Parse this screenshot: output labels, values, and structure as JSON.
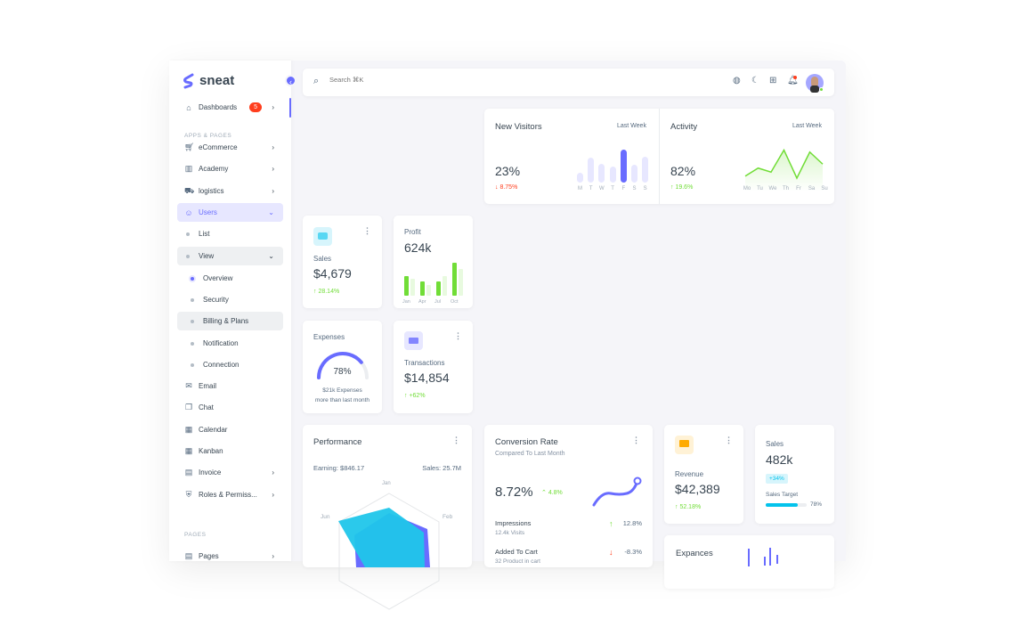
{
  "brand": {
    "name": "sneat",
    "color": "#696cff"
  },
  "search": {
    "placeholder": "Search ⌘K"
  },
  "navbar_icons": [
    "globe-icon",
    "moon-icon",
    "grid-icon",
    "bell-icon",
    "avatar"
  ],
  "sidebar": {
    "dashboards": {
      "label": "Dashboards",
      "badge": "5"
    },
    "section_apps": "APPS & PAGES",
    "items": [
      {
        "label": "eCommerce",
        "icon": "cart-icon"
      },
      {
        "label": "Academy",
        "icon": "book-icon"
      },
      {
        "label": "logistics",
        "icon": "truck-icon"
      },
      {
        "label": "Users",
        "icon": "user-icon"
      },
      {
        "label": "List"
      },
      {
        "label": "View"
      },
      {
        "label": "Overview"
      },
      {
        "label": "Security"
      },
      {
        "label": "Billing & Plans"
      },
      {
        "label": "Notification"
      },
      {
        "label": "Connection"
      },
      {
        "label": "Email",
        "icon": "mail-icon"
      },
      {
        "label": "Chat",
        "icon": "chat-icon"
      },
      {
        "label": "Calendar",
        "icon": "calendar-icon"
      },
      {
        "label": "Kanban",
        "icon": "kanban-icon"
      },
      {
        "label": "Invoice",
        "icon": "invoice-icon"
      },
      {
        "label": "Roles & Permiss...",
        "icon": "shield-icon"
      }
    ],
    "section_pages": "PAGES",
    "pages": {
      "label": "Pages"
    }
  },
  "new_visitors": {
    "title": "New Visitors",
    "period": "Last Week",
    "value": "23%",
    "change": "8.75%",
    "days": [
      "M",
      "T",
      "W",
      "T",
      "F",
      "S",
      "S"
    ],
    "bars": [
      30,
      75,
      58,
      48,
      100,
      55,
      78
    ],
    "highlight": 4
  },
  "activity": {
    "title": "Activity",
    "period": "Last Week",
    "value": "82%",
    "change": "19.6%",
    "days": [
      "Mo",
      "Tu",
      "We",
      "Th",
      "Fr",
      "Sa",
      "Su"
    ],
    "line": [
      25,
      45,
      35,
      90,
      20,
      85,
      55
    ]
  },
  "sales": {
    "label": "Sales",
    "value": "$4,679",
    "change": "28.14%"
  },
  "profit": {
    "label": "Profit",
    "value": "624k",
    "months": [
      "Jan",
      "Apr",
      "Jul",
      "Oct"
    ],
    "bars": [
      [
        45,
        38
      ],
      [
        33,
        25
      ],
      [
        33,
        45
      ],
      [
        75,
        60
      ]
    ]
  },
  "expenses": {
    "label": "Expenses",
    "percent": 78,
    "percent_label": "78%",
    "note1": "$21k Expenses",
    "note2": "more than last month"
  },
  "transactions": {
    "label": "Transactions",
    "value": "$14,854",
    "change": "+62%"
  },
  "performance": {
    "title": "Performance",
    "earning": "Earning: $846.17",
    "sales": "Sales: 25.7M",
    "axes": [
      "Jan",
      "Feb",
      "Jun"
    ]
  },
  "conversion": {
    "title": "Conversion Rate",
    "subtitle": "Compared To Last Month",
    "value": "8.72%",
    "change": "4.8%",
    "rows": [
      {
        "label": "Impressions",
        "sub": "12.4k Visits",
        "value": "12.8%",
        "dir": "up"
      },
      {
        "label": "Added To Cart",
        "sub": "32 Product in cart",
        "value": "-8.3%",
        "dir": "down"
      }
    ]
  },
  "revenue": {
    "label": "Revenue",
    "value": "$42,389",
    "change": "52.18%"
  },
  "sales2": {
    "label": "Sales",
    "value": "482k",
    "badge": "+34%",
    "target_label": "Sales Target",
    "target": 78,
    "target_text": "78%"
  },
  "expances": {
    "title": "Expances"
  }
}
